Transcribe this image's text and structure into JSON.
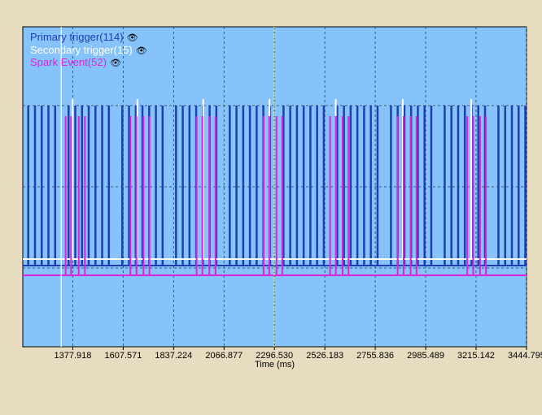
{
  "chart_data": {
    "type": "timing",
    "xlabel": "Time (ms)",
    "xlim": [
      1150,
      3445
    ],
    "x_ticks": [
      1377.918,
      1607.571,
      1837.224,
      2066.877,
      2296.53,
      2526.183,
      2755.836,
      2985.489,
      3215.142,
      3444.795
    ],
    "x_tick_labels": [
      "1377.918",
      "1607.571",
      "1837.224",
      "2066.877",
      "2296.530",
      "2526.183",
      "2755.836",
      "2985.489",
      "3215.142",
      "3444.795"
    ],
    "cursors": [
      {
        "x": 1325,
        "color": "#ffffff"
      },
      {
        "x": 2295,
        "color": "#e8e870"
      }
    ],
    "series": [
      {
        "name": "Primary trigger",
        "label": "Primary trigger(114)",
        "count": 114,
        "color": "#1f3fb0",
        "first_x": 1175,
        "interval": 30.6,
        "gap_every": 8,
        "gap_after": 5
      },
      {
        "name": "Secondary trigger",
        "label": "Secondary trigger(15)",
        "count": 15,
        "color": "#ffffff",
        "pulses": [
          1377,
          1672,
          1972,
          2274,
          2576,
          2881,
          3193
        ]
      },
      {
        "name": "Spark Event",
        "label": "Spark Event(52)",
        "count": 52,
        "color": "#dd22dd",
        "pulse_groups": [
          [
            1345,
            1370,
            1405,
            1433
          ],
          [
            1640,
            1668,
            1700,
            1727
          ],
          [
            1942,
            1968,
            2000,
            2028
          ],
          [
            2247,
            2273,
            2306,
            2332
          ],
          [
            2550,
            2576,
            2607,
            2634
          ],
          [
            2858,
            2885,
            2917,
            2944
          ],
          [
            3175,
            3202,
            3233,
            3260
          ]
        ]
      }
    ],
    "grid": true
  },
  "legend_icon": "eye-icon"
}
